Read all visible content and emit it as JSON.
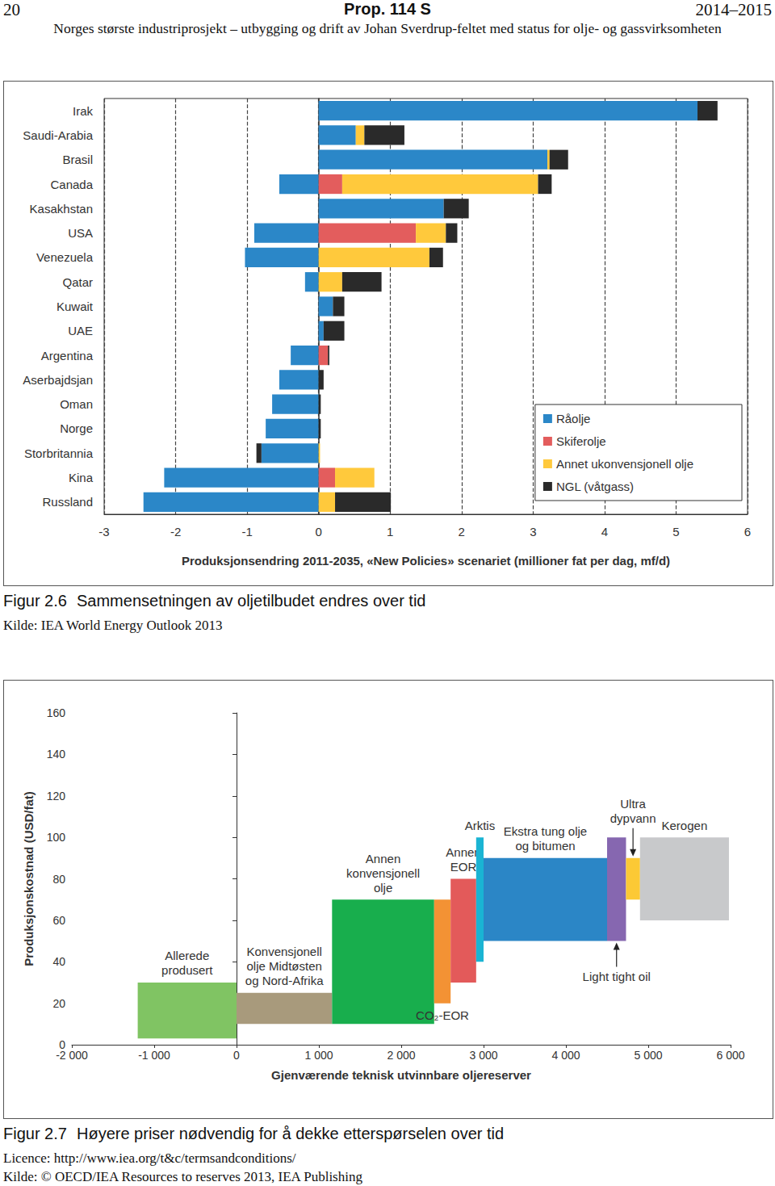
{
  "page": {
    "header": {
      "page_number": "20",
      "title": "Prop. 114 S",
      "session": "2014–2015",
      "subtitle": "Norges største industriprosjekt – utbygging og drift av Johan Sverdrup-feltet med status for olje- og gassvirksomheten"
    },
    "figures": [
      {
        "number": "Figur 2.6",
        "caption": "Sammensetningen av oljetilbudet endres over tid",
        "notes": [
          "Kilde: IEA World Energy Outlook 2013"
        ]
      },
      {
        "number": "Figur 2.7",
        "caption": "Høyere priser nødvendig for å dekke etterspørselen over tid",
        "notes": [
          "Licence: http://www.iea.org/t&c/termsandconditions/",
          "Kilde: © OECD/IEA Resources to reserves 2013, IEA Publishing"
        ]
      }
    ]
  },
  "chart_data": [
    {
      "type": "bar",
      "orientation": "horizontal",
      "stacked": true,
      "grid": true,
      "legend": "lower right",
      "xlabel": "Produksjonsendring 2011-2035, «New Policies» scenariet (millioner fat per dag, mf/d)",
      "categories": [
        "Irak",
        "Saudi-Arabia",
        "Brasil",
        "Canada",
        "Kasakhstan",
        "USA",
        "Venezuela",
        "Qatar",
        "Kuwait",
        "UAE",
        "Argentina",
        "Aserbajdsjan",
        "Oman",
        "Norge",
        "Storbritannia",
        "Kina",
        "Russland"
      ],
      "series": [
        {
          "name": "Råolje",
          "color": "#2b87c8",
          "values": [
            5.3,
            0.52,
            3.2,
            -0.55,
            1.75,
            -0.9,
            -1.03,
            -0.19,
            0.2,
            0.07,
            -0.39,
            -0.55,
            -0.65,
            -0.74,
            -0.8,
            -2.16,
            -2.45
          ]
        },
        {
          "name": "Skiferolje",
          "color": "#e35d5d",
          "values": [
            0,
            0,
            0,
            0.33,
            0,
            1.36,
            0,
            0,
            0,
            0,
            0.13,
            0,
            0,
            0,
            0,
            0.23,
            0
          ]
        },
        {
          "name": "Annet ukonvensjonell olje",
          "color": "#ffc93c",
          "values": [
            0,
            0.12,
            0.03,
            2.74,
            0,
            0.42,
            1.55,
            0.33,
            0,
            0,
            0,
            0,
            0,
            0,
            0.02,
            0.55,
            0.23
          ]
        },
        {
          "name": "NGL (våtgass)",
          "color": "#2a2a2a",
          "values": [
            0.28,
            0.56,
            0.26,
            0.19,
            0.35,
            0.16,
            0.19,
            0.55,
            0.16,
            0.29,
            0.02,
            0.07,
            0.03,
            0.03,
            -0.07,
            0,
            0.78
          ]
        }
      ],
      "xlim": [
        -3,
        6
      ],
      "xticks": [
        -3,
        -2,
        -1,
        0,
        1,
        2,
        3,
        4,
        5,
        6
      ]
    },
    {
      "type": "bar",
      "grid": false,
      "xlabel": "Gjenværende teknisk utvinnbare oljereserver",
      "ylabel": "Produksjonskostnad (USD/fat)",
      "series": [
        {
          "name": "Allerede\nprodusert",
          "color": "#80c463",
          "x": [
            -1200,
            0
          ],
          "y": [
            3,
            30
          ]
        },
        {
          "name": "Konvensjonell\nolje Midtøsten\nog Nord-Afrika",
          "color": "#a89a7c",
          "x": [
            0,
            1160
          ],
          "y": [
            10,
            25
          ]
        },
        {
          "name": "Annen\nkonvensjonell\nolje",
          "color": "#18ae4d",
          "x": [
            1160,
            2400
          ],
          "y": [
            10,
            70
          ]
        },
        {
          "name": "CO₂-EOR",
          "color": "#f39234",
          "x": [
            2400,
            2600
          ],
          "y": [
            20,
            70
          ]
        },
        {
          "name": "Annen\nEOR",
          "color": "#e35a5a",
          "x": [
            2600,
            2910
          ],
          "y": [
            30,
            80
          ]
        },
        {
          "name": "Arktis",
          "color": "#1ab4d3",
          "x": [
            2910,
            3000
          ],
          "y": [
            40,
            100
          ]
        },
        {
          "name": "Ekstra tung olje\nog bitumen",
          "color": "#2b86c6",
          "x": [
            3000,
            4500
          ],
          "y": [
            50,
            90
          ]
        },
        {
          "name": "Light tight oil",
          "color": "#8667b0",
          "x": [
            4500,
            4730
          ],
          "y": [
            50,
            100
          ]
        },
        {
          "name": "Ultra\ndypvann",
          "color": "#fcc935",
          "x": [
            4730,
            4900
          ],
          "y": [
            70,
            90
          ]
        },
        {
          "name": "Kerogen",
          "color": "#c8c9cb",
          "x": [
            4900,
            5980
          ],
          "y": [
            60,
            100
          ]
        }
      ],
      "xlim": [
        -2000,
        6000
      ],
      "xticks": [
        {
          "value": -2000,
          "label": "-2 000"
        },
        {
          "value": -1000,
          "label": "-1 000"
        },
        0,
        {
          "value": 1000,
          "label": "1 000"
        },
        {
          "value": 2000,
          "label": "2 000"
        },
        {
          "value": 3000,
          "label": "3 000"
        },
        {
          "value": 4000,
          "label": "4 000"
        },
        {
          "value": 5000,
          "label": "5 000"
        },
        {
          "value": 6000,
          "label": "6 000"
        }
      ],
      "ylim": [
        0,
        160
      ],
      "yticks": [
        0,
        20,
        40,
        60,
        80,
        100,
        120,
        140,
        160
      ]
    }
  ]
}
